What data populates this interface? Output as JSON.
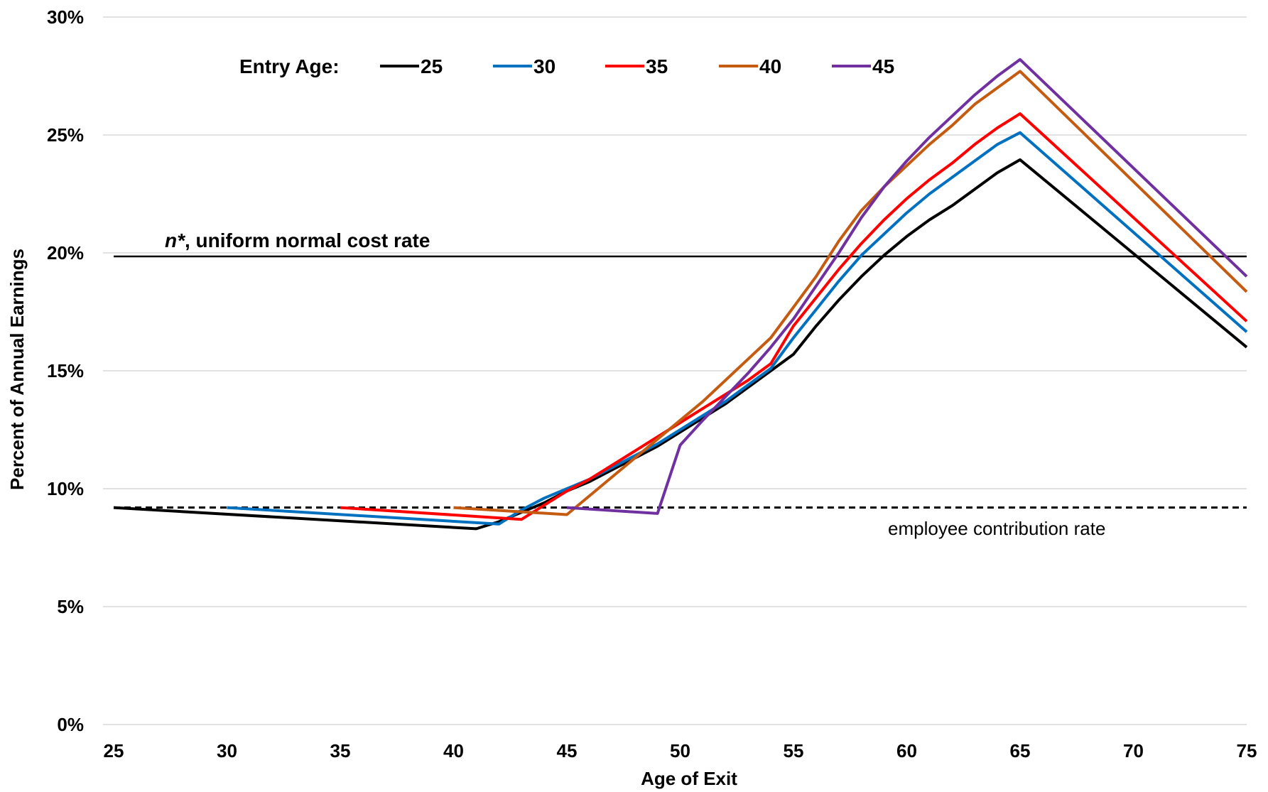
{
  "chart_data": {
    "type": "line",
    "xlabel": "Age of Exit",
    "ylabel": "Percent of Annual Earnings",
    "xlim": [
      25,
      75
    ],
    "ylim": [
      0,
      30
    ],
    "x_ticks": [
      "25",
      "30",
      "35",
      "40",
      "45",
      "50",
      "55",
      "60",
      "65",
      "70",
      "75"
    ],
    "y_ticks": [
      "0%",
      "5%",
      "10%",
      "15%",
      "20%",
      "25%",
      "30%"
    ],
    "grid": "horizontal",
    "legend": {
      "title": "Entry Age:",
      "placement": "top-left"
    },
    "series": [
      {
        "name": "25",
        "color": "#000000",
        "points": [
          [
            25,
            9.2
          ],
          [
            41,
            8.3
          ],
          [
            42,
            8.6
          ],
          [
            43,
            9.0
          ],
          [
            44,
            9.4
          ],
          [
            45,
            9.9
          ],
          [
            46,
            10.3
          ],
          [
            47,
            10.8
          ],
          [
            48,
            11.3
          ],
          [
            49,
            11.8
          ],
          [
            50,
            12.4
          ],
          [
            51,
            13.0
          ],
          [
            52,
            13.6
          ],
          [
            53,
            14.3
          ],
          [
            54,
            15.0
          ],
          [
            55,
            15.7
          ],
          [
            56,
            16.9
          ],
          [
            57,
            18.0
          ],
          [
            58,
            19.0
          ],
          [
            59,
            19.9
          ],
          [
            60,
            20.7
          ],
          [
            61,
            21.4
          ],
          [
            62,
            22.0
          ],
          [
            63,
            22.7
          ],
          [
            64,
            23.4
          ],
          [
            65,
            23.95
          ],
          [
            75,
            16.0
          ]
        ]
      },
      {
        "name": "30",
        "color": "#0070C0",
        "points": [
          [
            30,
            9.2
          ],
          [
            42,
            8.5
          ],
          [
            43,
            9.1
          ],
          [
            44,
            9.6
          ],
          [
            45,
            10.0
          ],
          [
            46,
            10.4
          ],
          [
            47,
            10.9
          ],
          [
            48,
            11.4
          ],
          [
            49,
            11.9
          ],
          [
            50,
            12.5
          ],
          [
            51,
            13.1
          ],
          [
            52,
            13.7
          ],
          [
            53,
            14.4
          ],
          [
            54,
            15.1
          ],
          [
            55,
            16.4
          ],
          [
            56,
            17.6
          ],
          [
            57,
            18.8
          ],
          [
            58,
            19.9
          ],
          [
            59,
            20.8
          ],
          [
            60,
            21.7
          ],
          [
            61,
            22.5
          ],
          [
            62,
            23.2
          ],
          [
            63,
            23.9
          ],
          [
            64,
            24.6
          ],
          [
            65,
            25.1
          ],
          [
            75,
            16.65
          ]
        ]
      },
      {
        "name": "35",
        "color": "#FF0000",
        "points": [
          [
            35,
            9.2
          ],
          [
            43,
            8.7
          ],
          [
            44,
            9.3
          ],
          [
            45,
            9.9
          ],
          [
            46,
            10.4
          ],
          [
            47,
            11.0
          ],
          [
            48,
            11.6
          ],
          [
            49,
            12.2
          ],
          [
            50,
            12.8
          ],
          [
            51,
            13.4
          ],
          [
            52,
            14.0
          ],
          [
            53,
            14.6
          ],
          [
            54,
            15.3
          ],
          [
            55,
            16.9
          ],
          [
            56,
            18.1
          ],
          [
            57,
            19.3
          ],
          [
            58,
            20.4
          ],
          [
            59,
            21.4
          ],
          [
            60,
            22.3
          ],
          [
            61,
            23.1
          ],
          [
            62,
            23.8
          ],
          [
            63,
            24.6
          ],
          [
            64,
            25.3
          ],
          [
            65,
            25.9
          ],
          [
            75,
            17.1
          ]
        ]
      },
      {
        "name": "40",
        "color": "#C55A11",
        "points": [
          [
            40,
            9.2
          ],
          [
            45,
            8.9
          ],
          [
            46,
            9.7
          ],
          [
            47,
            10.5
          ],
          [
            48,
            11.3
          ],
          [
            49,
            12.1
          ],
          [
            50,
            12.9
          ],
          [
            51,
            13.7
          ],
          [
            52,
            14.6
          ],
          [
            53,
            15.5
          ],
          [
            54,
            16.4
          ],
          [
            55,
            17.7
          ],
          [
            56,
            19.0
          ],
          [
            57,
            20.5
          ],
          [
            58,
            21.8
          ],
          [
            59,
            22.8
          ],
          [
            60,
            23.7
          ],
          [
            61,
            24.6
          ],
          [
            62,
            25.4
          ],
          [
            63,
            26.3
          ],
          [
            64,
            27.0
          ],
          [
            65,
            27.7
          ],
          [
            75,
            18.35
          ]
        ]
      },
      {
        "name": "45",
        "color": "#7030A0",
        "points": [
          [
            45,
            9.2
          ],
          [
            49,
            8.95
          ],
          [
            50,
            11.85
          ],
          [
            51,
            12.9
          ],
          [
            52,
            13.9
          ],
          [
            53,
            14.9
          ],
          [
            54,
            16.0
          ],
          [
            55,
            17.2
          ],
          [
            56,
            18.6
          ],
          [
            57,
            20.0
          ],
          [
            58,
            21.5
          ],
          [
            59,
            22.8
          ],
          [
            60,
            23.9
          ],
          [
            61,
            24.9
          ],
          [
            62,
            25.8
          ],
          [
            63,
            26.7
          ],
          [
            64,
            27.5
          ],
          [
            65,
            28.2
          ],
          [
            75,
            19.0
          ]
        ]
      }
    ],
    "reference_lines": [
      {
        "label_bold": "n*",
        "label_rest": ", uniform normal cost rate",
        "value": 19.85,
        "style": "solid",
        "color": "#000000"
      },
      {
        "label": "employee contribution rate",
        "value": 9.2,
        "style": "dashed",
        "color": "#000000"
      }
    ]
  }
}
